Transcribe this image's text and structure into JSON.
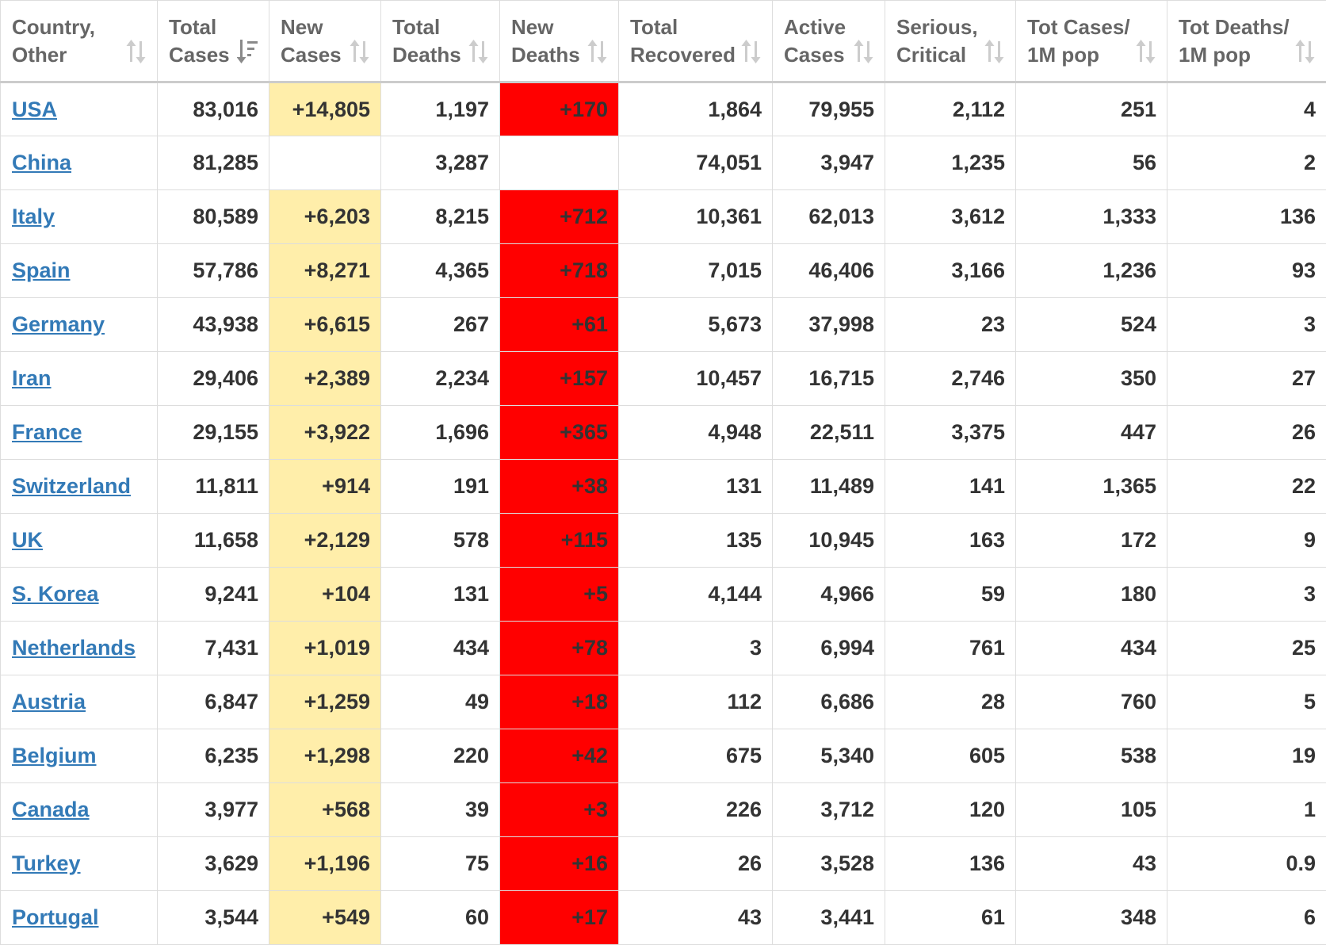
{
  "colors": {
    "link": "#337ab7",
    "new_cases_bg": "#ffeeaa",
    "new_deaths_bg": "#ff0000"
  },
  "columns": [
    {
      "id": "country",
      "label": "Country,\nOther",
      "sort_icon": "sort-icon"
    },
    {
      "id": "total_cases",
      "label": "Total\nCases",
      "sort_icon": "sort-desc-icon"
    },
    {
      "id": "new_cases",
      "label": "New\nCases",
      "sort_icon": "sort-icon"
    },
    {
      "id": "total_deaths",
      "label": "Total\nDeaths",
      "sort_icon": "sort-icon"
    },
    {
      "id": "new_deaths",
      "label": "New\nDeaths",
      "sort_icon": "sort-icon"
    },
    {
      "id": "total_recovered",
      "label": "Total\nRecovered",
      "sort_icon": "sort-icon"
    },
    {
      "id": "active_cases",
      "label": "Active\nCases",
      "sort_icon": "sort-icon"
    },
    {
      "id": "serious_critical",
      "label": "Serious,\nCritical",
      "sort_icon": "sort-icon"
    },
    {
      "id": "tot_cases_per_1m",
      "label": "Tot Cases/\n1M pop",
      "sort_icon": "sort-icon"
    },
    {
      "id": "tot_deaths_per_1m",
      "label": "Tot Deaths/\n1M pop",
      "sort_icon": "sort-icon"
    }
  ],
  "rows": [
    {
      "country": "USA",
      "total_cases": "83,016",
      "new_cases": "+14,805",
      "total_deaths": "1,197",
      "new_deaths": "+170",
      "total_recovered": "1,864",
      "active_cases": "79,955",
      "serious_critical": "2,112",
      "tot_cases_per_1m": "251",
      "tot_deaths_per_1m": "4"
    },
    {
      "country": "China",
      "total_cases": "81,285",
      "new_cases": "",
      "total_deaths": "3,287",
      "new_deaths": "",
      "total_recovered": "74,051",
      "active_cases": "3,947",
      "serious_critical": "1,235",
      "tot_cases_per_1m": "56",
      "tot_deaths_per_1m": "2"
    },
    {
      "country": "Italy",
      "total_cases": "80,589",
      "new_cases": "+6,203",
      "total_deaths": "8,215",
      "new_deaths": "+712",
      "total_recovered": "10,361",
      "active_cases": "62,013",
      "serious_critical": "3,612",
      "tot_cases_per_1m": "1,333",
      "tot_deaths_per_1m": "136"
    },
    {
      "country": "Spain",
      "total_cases": "57,786",
      "new_cases": "+8,271",
      "total_deaths": "4,365",
      "new_deaths": "+718",
      "total_recovered": "7,015",
      "active_cases": "46,406",
      "serious_critical": "3,166",
      "tot_cases_per_1m": "1,236",
      "tot_deaths_per_1m": "93"
    },
    {
      "country": "Germany",
      "total_cases": "43,938",
      "new_cases": "+6,615",
      "total_deaths": "267",
      "new_deaths": "+61",
      "total_recovered": "5,673",
      "active_cases": "37,998",
      "serious_critical": "23",
      "tot_cases_per_1m": "524",
      "tot_deaths_per_1m": "3"
    },
    {
      "country": "Iran",
      "total_cases": "29,406",
      "new_cases": "+2,389",
      "total_deaths": "2,234",
      "new_deaths": "+157",
      "total_recovered": "10,457",
      "active_cases": "16,715",
      "serious_critical": "2,746",
      "tot_cases_per_1m": "350",
      "tot_deaths_per_1m": "27"
    },
    {
      "country": "France",
      "total_cases": "29,155",
      "new_cases": "+3,922",
      "total_deaths": "1,696",
      "new_deaths": "+365",
      "total_recovered": "4,948",
      "active_cases": "22,511",
      "serious_critical": "3,375",
      "tot_cases_per_1m": "447",
      "tot_deaths_per_1m": "26"
    },
    {
      "country": "Switzerland",
      "total_cases": "11,811",
      "new_cases": "+914",
      "total_deaths": "191",
      "new_deaths": "+38",
      "total_recovered": "131",
      "active_cases": "11,489",
      "serious_critical": "141",
      "tot_cases_per_1m": "1,365",
      "tot_deaths_per_1m": "22"
    },
    {
      "country": "UK",
      "total_cases": "11,658",
      "new_cases": "+2,129",
      "total_deaths": "578",
      "new_deaths": "+115",
      "total_recovered": "135",
      "active_cases": "10,945",
      "serious_critical": "163",
      "tot_cases_per_1m": "172",
      "tot_deaths_per_1m": "9"
    },
    {
      "country": "S. Korea",
      "total_cases": "9,241",
      "new_cases": "+104",
      "total_deaths": "131",
      "new_deaths": "+5",
      "total_recovered": "4,144",
      "active_cases": "4,966",
      "serious_critical": "59",
      "tot_cases_per_1m": "180",
      "tot_deaths_per_1m": "3"
    },
    {
      "country": "Netherlands",
      "total_cases": "7,431",
      "new_cases": "+1,019",
      "total_deaths": "434",
      "new_deaths": "+78",
      "total_recovered": "3",
      "active_cases": "6,994",
      "serious_critical": "761",
      "tot_cases_per_1m": "434",
      "tot_deaths_per_1m": "25"
    },
    {
      "country": "Austria",
      "total_cases": "6,847",
      "new_cases": "+1,259",
      "total_deaths": "49",
      "new_deaths": "+18",
      "total_recovered": "112",
      "active_cases": "6,686",
      "serious_critical": "28",
      "tot_cases_per_1m": "760",
      "tot_deaths_per_1m": "5"
    },
    {
      "country": "Belgium",
      "total_cases": "6,235",
      "new_cases": "+1,298",
      "total_deaths": "220",
      "new_deaths": "+42",
      "total_recovered": "675",
      "active_cases": "5,340",
      "serious_critical": "605",
      "tot_cases_per_1m": "538",
      "tot_deaths_per_1m": "19"
    },
    {
      "country": "Canada",
      "total_cases": "3,977",
      "new_cases": "+568",
      "total_deaths": "39",
      "new_deaths": "+3",
      "total_recovered": "226",
      "active_cases": "3,712",
      "serious_critical": "120",
      "tot_cases_per_1m": "105",
      "tot_deaths_per_1m": "1"
    },
    {
      "country": "Turkey",
      "total_cases": "3,629",
      "new_cases": "+1,196",
      "total_deaths": "75",
      "new_deaths": "+16",
      "total_recovered": "26",
      "active_cases": "3,528",
      "serious_critical": "136",
      "tot_cases_per_1m": "43",
      "tot_deaths_per_1m": "0.9"
    },
    {
      "country": "Portugal",
      "total_cases": "3,544",
      "new_cases": "+549",
      "total_deaths": "60",
      "new_deaths": "+17",
      "total_recovered": "43",
      "active_cases": "3,441",
      "serious_critical": "61",
      "tot_cases_per_1m": "348",
      "tot_deaths_per_1m": "6"
    }
  ]
}
